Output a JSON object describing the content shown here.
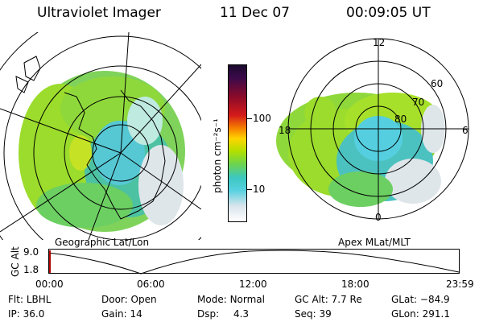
{
  "header": {
    "instrument": "Ultraviolet Imager",
    "date": "11 Dec 07",
    "time": "00:09:05 UT"
  },
  "panels": {
    "left": {
      "caption": "Geographic Lat/Lon"
    },
    "right": {
      "caption": "Apex MLat/MLT",
      "mlt_labels": {
        "top": "12",
        "bottom": "0",
        "left": "18",
        "right": "6"
      },
      "lat_labels": [
        "60",
        "70",
        "80"
      ]
    }
  },
  "colorbar": {
    "unit_label": "photon cm⁻²s⁻¹",
    "ticks": [
      "100",
      "10"
    ]
  },
  "altitude_plot": {
    "axis_label": "GC Alt",
    "y_ticks": [
      "9.0",
      "1.8"
    ],
    "x_ticks": [
      "00:00",
      "06:00",
      "12:00",
      "18:00",
      "23:59"
    ]
  },
  "info": {
    "flt_label": "Flt:",
    "flt_value": "LBHL",
    "ip_label": "IP:",
    "ip_value": "36.0",
    "door_label": "Door:",
    "door_value": "Open",
    "gain_label": "Gain:",
    "gain_value": "14",
    "mode_label": "Mode:",
    "mode_value": "Normal",
    "dsp_label": "Dsp:",
    "dsp_value": "4.3",
    "gcalt_label": "GC Alt:",
    "gcalt_value": "7.7 Re",
    "seq_label": "Seq:",
    "seq_value": "39",
    "glat_label": "GLat:",
    "glat_value": "−84.9",
    "glon_label": "GLon:",
    "glon_value": "291.1"
  }
}
